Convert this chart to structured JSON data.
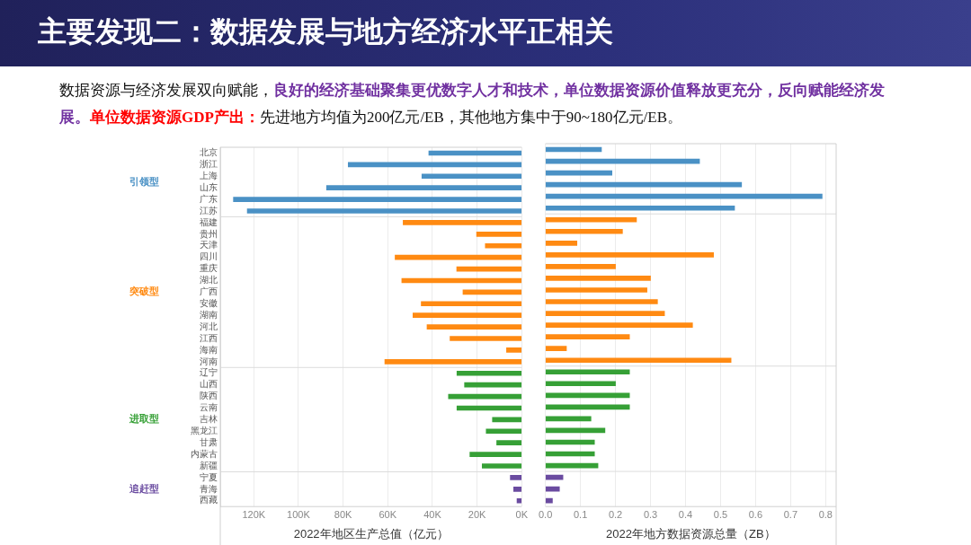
{
  "chart_data": [
    {
      "type": "bar",
      "title": "主要发现二：数据发展与地方经济水平正相关",
      "annotations": [
        "数据资源与经济发展双向赋能，",
        "良好的经济基础聚集更优数字人才和技术，单位数据资源价值释放更充分，反向赋能经济发展。",
        "单位数据资源GDP产出：",
        "先进地方均值为200亿元/EB，其他地方集中于90~180亿元/EB。"
      ],
      "orientation": "horizontal",
      "xlabel": "2022年地区生产总值（亿元）",
      "grid": "x",
      "categories": [
        "北京",
        "浙江",
        "上海",
        "山东",
        "广东",
        "江苏",
        "福建",
        "贵州",
        "天津",
        "四川",
        "重庆",
        "湖北",
        "广西",
        "安徽",
        "湖南",
        "河北",
        "江西",
        "海南",
        "河南",
        "辽宁",
        "山西",
        "陕西",
        "云南",
        "吉林",
        "黑龙江",
        "甘肃",
        "内蒙古",
        "新疆",
        "宁夏",
        "青海",
        "西藏"
      ],
      "xlim": [
        135000,
        0
      ],
      "xticks": [
        {
          "value": 120000,
          "label": "120K"
        },
        {
          "value": 100000,
          "label": "100K"
        },
        {
          "value": 80000,
          "label": "80K"
        },
        {
          "value": 60000,
          "label": "60K"
        },
        {
          "value": 40000,
          "label": "40K"
        },
        {
          "value": 20000,
          "label": "20K"
        },
        {
          "value": 0,
          "label": "0K"
        }
      ],
      "series": [
        {
          "name": "引领型",
          "color": "#4a91c5",
          "values": [
            41600,
            77700,
            44700,
            87400,
            129100,
            122900,
            null,
            null,
            null,
            null,
            null,
            null,
            null,
            null,
            null,
            null,
            null,
            null,
            null,
            null,
            null,
            null,
            null,
            null,
            null,
            null,
            null,
            null,
            null,
            null,
            null
          ]
        },
        {
          "name": "突破型",
          "color": "#ff8a12",
          "values": [
            null,
            null,
            null,
            null,
            null,
            null,
            53100,
            20200,
            16300,
            56700,
            29100,
            53700,
            26300,
            45000,
            48700,
            42400,
            32100,
            6800,
            61300,
            null,
            null,
            null,
            null,
            null,
            null,
            null,
            null,
            null,
            null,
            null,
            null
          ]
        },
        {
          "name": "进取型",
          "color": "#36a036",
          "values": [
            null,
            null,
            null,
            null,
            null,
            null,
            null,
            null,
            null,
            null,
            null,
            null,
            null,
            null,
            null,
            null,
            null,
            null,
            null,
            29000,
            25600,
            32800,
            29000,
            13100,
            15900,
            11200,
            23200,
            17700,
            null,
            null,
            null
          ]
        },
        {
          "name": "追赶型",
          "color": "#6a4ba0",
          "values": [
            null,
            null,
            null,
            null,
            null,
            null,
            null,
            null,
            null,
            null,
            null,
            null,
            null,
            null,
            null,
            null,
            null,
            null,
            null,
            null,
            null,
            null,
            null,
            null,
            null,
            null,
            null,
            null,
            5100,
            3600,
            2100
          ]
        }
      ]
    },
    {
      "type": "bar",
      "orientation": "horizontal",
      "xlabel": "2022年地方数据资源总量（ZB）",
      "grid": "x",
      "tick_labels": "x",
      "categories": [
        null,
        null,
        null,
        null,
        null,
        null,
        null,
        null,
        null,
        null,
        null,
        null,
        null,
        null,
        null,
        null,
        null,
        null,
        null,
        null,
        null,
        null,
        null,
        null,
        null,
        null,
        null,
        null,
        null,
        null,
        null
      ],
      "xlim": [
        0,
        0.83
      ],
      "xticks": [
        {
          "value": 0,
          "label": "0.0"
        },
        0.1,
        0.2,
        0.3,
        0.4,
        0.5,
        0.6,
        0.7,
        0.8
      ],
      "series": [
        {
          "color": "#4a91c5",
          "values": [
            0.16,
            0.44,
            0.19,
            0.56,
            0.79,
            0.54,
            null,
            null,
            null,
            null,
            null,
            null,
            null,
            null,
            null,
            null,
            null,
            null,
            null,
            null,
            null,
            null,
            null,
            null,
            null,
            null,
            null,
            null,
            null,
            null,
            null
          ]
        },
        {
          "color": "#ff8a12",
          "values": [
            null,
            null,
            null,
            null,
            null,
            null,
            0.26,
            0.22,
            0.09,
            0.48,
            0.2,
            0.3,
            0.29,
            0.32,
            0.34,
            0.42,
            0.24,
            0.06,
            0.53,
            null,
            null,
            null,
            null,
            null,
            null,
            null,
            null,
            null,
            null,
            null,
            null
          ]
        },
        {
          "color": "#36a036",
          "values": [
            null,
            null,
            null,
            null,
            null,
            null,
            null,
            null,
            null,
            null,
            null,
            null,
            null,
            null,
            null,
            null,
            null,
            null,
            null,
            0.24,
            0.2,
            0.24,
            0.24,
            0.13,
            0.17,
            0.14,
            0.14,
            0.15,
            null,
            null,
            null
          ]
        },
        {
          "color": "#6a4ba0",
          "values": [
            null,
            null,
            null,
            null,
            null,
            null,
            null,
            null,
            null,
            null,
            null,
            null,
            null,
            null,
            null,
            null,
            null,
            null,
            null,
            null,
            null,
            null,
            null,
            null,
            null,
            null,
            null,
            null,
            0.05,
            0.04,
            0.02
          ]
        }
      ]
    }
  ]
}
